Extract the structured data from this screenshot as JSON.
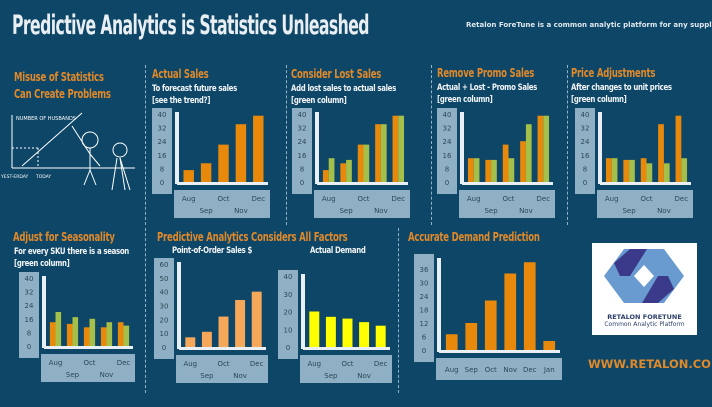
{
  "header": {
    "title": "Predictive Analytics is Statistics Unleashed",
    "tagline": "Retalon ForeTune is a common analytic platform for any supply chain"
  },
  "panels": {
    "misuse": {
      "title_1": "Misuse of Statistics",
      "title_2": "Can Create Problems",
      "comic_y_label": "NUMBER OF HUSBANDS",
      "comic_x_1": "YEST-ERDAY",
      "comic_x_2": "TODAY"
    },
    "actual": {
      "title": "Actual Sales",
      "sub_1": "To forecast future sales",
      "sub_2": "[see the trend?]"
    },
    "lost": {
      "title": "Consider Lost Sales",
      "sub_1": "Add lost sales to actual sales",
      "sub_2": "[green column]"
    },
    "promo": {
      "title": "Remove Promo Sales",
      "sub_1": "Actual + Lost - Promo Sales",
      "sub_2": "[green column]"
    },
    "price": {
      "title": "Price Adjustments",
      "sub_1": "After changes to unit prices",
      "sub_2": "[green column]"
    },
    "season": {
      "title": "Adjust for Seasonality",
      "sub_1": "For every SKU there is a season",
      "sub_2": "[green column]"
    },
    "factors": {
      "title": "Predictive Analytics Considers All Factors",
      "sub_pos": "Point-of-Order Sales $",
      "sub_demand": "Actual Demand"
    },
    "accurate": {
      "title": "Accurate Demand Prediction"
    }
  },
  "logo": {
    "line_1": "RETALON FORETUNE",
    "line_2": "Common Analytic Platform"
  },
  "url": "WWW.RETALON.COM",
  "colors": {
    "background": "#0d4667",
    "orange": "#e8890c",
    "green": "#a4bf4a",
    "light_orange": "#f5a75a",
    "yellow": "#ffff00",
    "axis_box": "#8fb0c4"
  },
  "chart_data": [
    {
      "id": "actual",
      "type": "bar",
      "categories": [
        "Aug",
        "Sep",
        "Oct",
        "Nov",
        "Dec"
      ],
      "yticks": [
        0,
        8,
        16,
        24,
        32,
        40
      ],
      "ylim": [
        0,
        40
      ],
      "series": [
        {
          "values": [
            7,
            11,
            22,
            34,
            39
          ],
          "color": "#e8890c"
        }
      ]
    },
    {
      "id": "lost",
      "type": "bar",
      "categories": [
        "Aug",
        "Sep",
        "Oct",
        "Nov",
        "Dec"
      ],
      "yticks": [
        0,
        8,
        16,
        24,
        32,
        40
      ],
      "ylim": [
        0,
        40
      ],
      "series": [
        {
          "values": [
            7,
            11,
            22,
            34,
            39
          ],
          "color": "#e8890c"
        },
        {
          "values": [
            14,
            13,
            22,
            34,
            39
          ],
          "color": "#a4bf4a"
        }
      ]
    },
    {
      "id": "promo",
      "type": "bar",
      "categories": [
        "Aug",
        "Sep",
        "Oct",
        "Nov",
        "Dec"
      ],
      "yticks": [
        0,
        8,
        16,
        24,
        32,
        40
      ],
      "ylim": [
        0,
        40
      ],
      "series": [
        {
          "values": [
            14,
            13,
            22,
            24,
            39
          ],
          "color": "#e8890c"
        },
        {
          "values": [
            14,
            13,
            14,
            34,
            39
          ],
          "color": "#a4bf4a"
        }
      ]
    },
    {
      "id": "price",
      "type": "bar",
      "categories": [
        "Aug",
        "Sep",
        "Oct",
        "Nov",
        "Dec"
      ],
      "yticks": [
        0,
        8,
        16,
        24,
        32,
        40
      ],
      "ylim": [
        0,
        40
      ],
      "series": [
        {
          "values": [
            14,
            13,
            14,
            34,
            39
          ],
          "color": "#e8890c"
        },
        {
          "values": [
            14,
            13,
            11,
            11,
            14
          ],
          "color": "#a4bf4a"
        }
      ]
    },
    {
      "id": "season",
      "type": "bar",
      "categories": [
        "Aug",
        "Sep",
        "Oct",
        "Nov",
        "Dec"
      ],
      "yticks": [
        0,
        8,
        16,
        24,
        32,
        40
      ],
      "ylim": [
        0,
        40
      ],
      "series": [
        {
          "values": [
            14,
            13,
            11,
            11,
            14
          ],
          "color": "#e8890c"
        },
        {
          "values": [
            20,
            17,
            16,
            14,
            12
          ],
          "color": "#a4bf4a"
        }
      ]
    },
    {
      "id": "pos",
      "type": "bar",
      "categories": [
        "Aug",
        "Sep",
        "Oct",
        "Nov",
        "Dec"
      ],
      "yticks": [
        0,
        10,
        20,
        30,
        40,
        50,
        60
      ],
      "ylim": [
        0,
        60
      ],
      "series": [
        {
          "values": [
            7,
            11,
            22,
            34,
            40
          ],
          "color": "#f5a75a"
        }
      ]
    },
    {
      "id": "demand",
      "type": "bar",
      "categories": [
        "Aug",
        "Sep",
        "Oct",
        "Nov",
        "Dec"
      ],
      "yticks": [
        0,
        10,
        20,
        30,
        40
      ],
      "ylim": [
        0,
        40
      ],
      "series": [
        {
          "values": [
            20,
            17,
            16,
            14,
            12
          ],
          "color": "#ffff00"
        }
      ]
    },
    {
      "id": "accurate",
      "type": "bar",
      "categories": [
        "Aug",
        "Sep",
        "Oct",
        "Nov",
        "Dec",
        "Jan"
      ],
      "yticks": [
        0,
        6,
        12,
        18,
        24,
        30,
        36
      ],
      "ylim": [
        0,
        40
      ],
      "series": [
        {
          "values": [
            7,
            12,
            22,
            34,
            39,
            4
          ],
          "color": "#e8890c"
        }
      ]
    }
  ]
}
